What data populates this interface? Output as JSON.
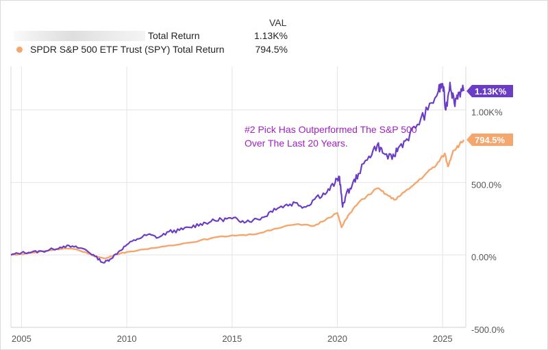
{
  "legend": {
    "header": "VAL",
    "rows": [
      {
        "label": "Total Return",
        "value": "1.13K%",
        "color": "#6a3dc4"
      },
      {
        "label": "SPDR S&P 500 ETF Trust (SPY) Total Return",
        "value": "794.5%",
        "color": "#f5a66d"
      }
    ]
  },
  "annotation": {
    "text": "#2 Pick Has Outperformed The S&P 500 Over The Last 20 Years."
  },
  "chart_data": {
    "type": "line",
    "x_range": [
      2004.5,
      2026.1
    ],
    "ylim": [
      -500,
      1300
    ],
    "x_ticks": [
      {
        "value": 2005,
        "label": "2005"
      },
      {
        "value": 2010,
        "label": "2010"
      },
      {
        "value": 2015,
        "label": "2015"
      },
      {
        "value": 2020,
        "label": "2020"
      },
      {
        "value": 2025,
        "label": "2025"
      }
    ],
    "y_ticks": [
      {
        "value": 1000,
        "label": "1.00K%"
      },
      {
        "value": 500,
        "label": "500.0%"
      },
      {
        "value": 0,
        "label": "0.00%"
      },
      {
        "value": -500,
        "label": "-500.0%"
      }
    ],
    "series": [
      {
        "name": "Total Return",
        "color": "#6a3dc4",
        "end_label": "1.13K%",
        "points": [
          [
            2004.5,
            0
          ],
          [
            2005.0,
            15
          ],
          [
            2005.5,
            20
          ],
          [
            2006.0,
            25
          ],
          [
            2006.5,
            40
          ],
          [
            2007.0,
            60
          ],
          [
            2007.5,
            55
          ],
          [
            2008.0,
            40
          ],
          [
            2008.5,
            -10
          ],
          [
            2008.9,
            -55
          ],
          [
            2009.2,
            -30
          ],
          [
            2009.6,
            20
          ],
          [
            2010.0,
            70
          ],
          [
            2010.5,
            110
          ],
          [
            2011.0,
            140
          ],
          [
            2011.5,
            120
          ],
          [
            2012.0,
            160
          ],
          [
            2012.5,
            170
          ],
          [
            2013.0,
            190
          ],
          [
            2013.5,
            215
          ],
          [
            2014.0,
            230
          ],
          [
            2014.5,
            245
          ],
          [
            2015.0,
            250
          ],
          [
            2015.5,
            235
          ],
          [
            2016.0,
            240
          ],
          [
            2016.5,
            260
          ],
          [
            2017.0,
            320
          ],
          [
            2017.5,
            340
          ],
          [
            2018.0,
            360
          ],
          [
            2018.5,
            330
          ],
          [
            2019.0,
            400
          ],
          [
            2019.5,
            430
          ],
          [
            2019.9,
            500
          ],
          [
            2020.1,
            540
          ],
          [
            2020.25,
            330
          ],
          [
            2020.4,
            410
          ],
          [
            2020.7,
            480
          ],
          [
            2021.0,
            560
          ],
          [
            2021.5,
            680
          ],
          [
            2021.9,
            760
          ],
          [
            2022.2,
            700
          ],
          [
            2022.6,
            660
          ],
          [
            2022.9,
            740
          ],
          [
            2023.3,
            800
          ],
          [
            2023.8,
            900
          ],
          [
            2024.3,
            1000
          ],
          [
            2024.8,
            1130
          ],
          [
            2025.0,
            1180
          ],
          [
            2025.15,
            1000
          ],
          [
            2025.35,
            1190
          ],
          [
            2025.55,
            1050
          ],
          [
            2025.75,
            1120
          ],
          [
            2026.0,
            1130
          ]
        ]
      },
      {
        "name": "SPDR S&P 500 ETF Trust (SPY) Total Return",
        "color": "#f5a66d",
        "end_label": "794.5%",
        "points": [
          [
            2004.5,
            0
          ],
          [
            2005.0,
            5
          ],
          [
            2005.5,
            15
          ],
          [
            2006.0,
            25
          ],
          [
            2006.5,
            35
          ],
          [
            2007.0,
            45
          ],
          [
            2007.5,
            40
          ],
          [
            2008.0,
            20
          ],
          [
            2008.5,
            -10
          ],
          [
            2009.0,
            -25
          ],
          [
            2009.4,
            0
          ],
          [
            2010.0,
            20
          ],
          [
            2011.0,
            40
          ],
          [
            2012.0,
            65
          ],
          [
            2013.0,
            85
          ],
          [
            2014.0,
            115
          ],
          [
            2015.0,
            135
          ],
          [
            2016.0,
            140
          ],
          [
            2017.0,
            180
          ],
          [
            2018.0,
            210
          ],
          [
            2018.9,
            200
          ],
          [
            2019.5,
            250
          ],
          [
            2020.0,
            290
          ],
          [
            2020.2,
            190
          ],
          [
            2020.5,
            270
          ],
          [
            2021.0,
            360
          ],
          [
            2021.9,
            460
          ],
          [
            2022.3,
            420
          ],
          [
            2022.7,
            380
          ],
          [
            2023.0,
            410
          ],
          [
            2023.6,
            480
          ],
          [
            2024.2,
            560
          ],
          [
            2024.7,
            620
          ],
          [
            2025.1,
            700
          ],
          [
            2025.25,
            610
          ],
          [
            2025.5,
            720
          ],
          [
            2025.8,
            760
          ],
          [
            2026.0,
            794.5
          ]
        ]
      }
    ]
  }
}
